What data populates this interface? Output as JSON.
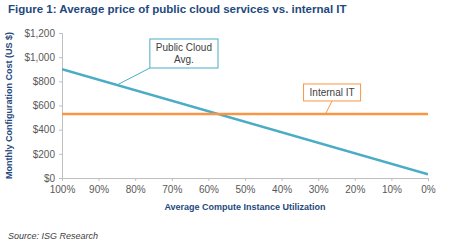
{
  "chart_data": {
    "type": "line",
    "title": "Figure 1: Average price of public cloud services vs. internal IT",
    "x_label": "Average Compute Instance Utilization",
    "y_label": "Monthly Configuration Cost (US $)",
    "source": "Source: ISG Research",
    "x": [
      100,
      0
    ],
    "xlim": [
      100,
      0
    ],
    "xticks": [
      {
        "value": 100,
        "label": "100%"
      },
      {
        "value": 90,
        "label": "90%"
      },
      {
        "value": 80,
        "label": "80%"
      },
      {
        "value": 70,
        "label": "70%"
      },
      {
        "value": 60,
        "label": "60%"
      },
      {
        "value": 50,
        "label": "50%"
      },
      {
        "value": 40,
        "label": "40%"
      },
      {
        "value": 30,
        "label": "30%"
      },
      {
        "value": 20,
        "label": "20%"
      },
      {
        "value": 10,
        "label": "10%"
      },
      {
        "value": 0,
        "label": "0%"
      }
    ],
    "ylim": [
      0,
      1200
    ],
    "yticks": [
      {
        "value": 0,
        "label": "$0"
      },
      {
        "value": 200,
        "label": "$200"
      },
      {
        "value": 400,
        "label": "$400"
      },
      {
        "value": 600,
        "label": "$600"
      },
      {
        "value": 800,
        "label": "$800"
      },
      {
        "value": 1000,
        "label": "$1,000"
      },
      {
        "value": 1200,
        "label": "$1,200"
      }
    ],
    "grid": false,
    "series": [
      {
        "name": "Public Cloud Avg.",
        "color": "#4BACC6",
        "values": [
          900,
          30
        ]
      },
      {
        "name": "Internal IT",
        "color": "#F79646",
        "values": [
          530,
          530
        ]
      }
    ]
  }
}
